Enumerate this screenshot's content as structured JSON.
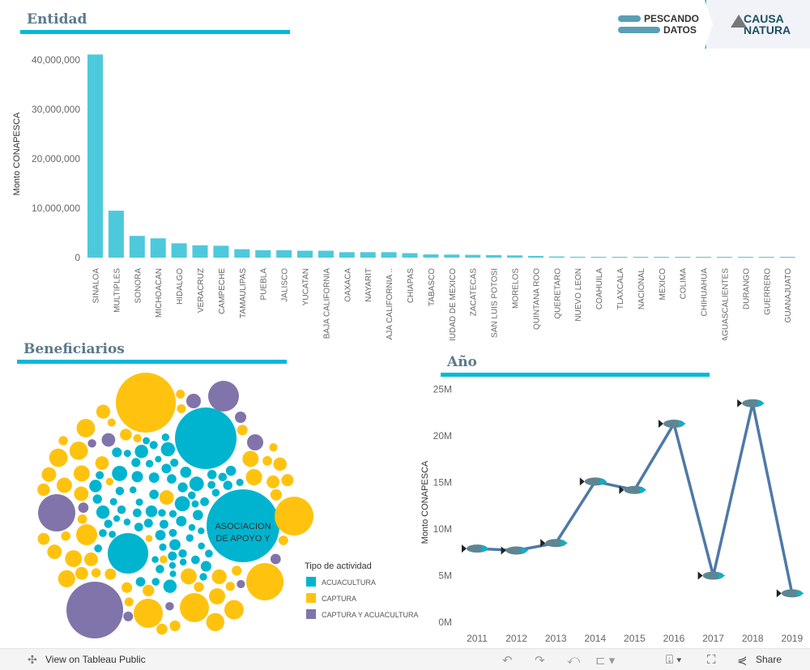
{
  "sections": {
    "entidad": "Entidad",
    "beneficiarios": "Beneficiarios",
    "anio": "Año"
  },
  "logos": {
    "pescando": [
      "PESCANDO",
      "DATOS"
    ],
    "causa": [
      "CAUSA",
      "NATURA"
    ]
  },
  "colors": {
    "bar": "#4dc9dc",
    "line": "#4e79a7",
    "acuacultura": "#00b4cf",
    "captura": "#ffc30f",
    "mixta": "#8174aa",
    "accent": "#00b9d9"
  },
  "chart_data": [
    {
      "type": "bar",
      "ylabel": "Monto CONAPESCA",
      "ylim": [
        0,
        42000000
      ],
      "yticks": [
        "0",
        "10,000,000",
        "20,000,000",
        "30,000,000",
        "40,000,000"
      ],
      "categories": [
        "SINALOA",
        "MULTIPLES",
        "SONORA",
        "MICHOACAN",
        "HIDALGO",
        "VERACRUZ",
        "CAMPECHE",
        "TAMAULIPAS",
        "PUEBLA",
        "JALISCO",
        "YUCATAN",
        "BAJA CALIFORNIA",
        "OAXACA",
        "NAYARIT",
        "BAJA CALIFORNIA ..",
        "CHIAPAS",
        "TABASCO",
        "CIUDAD DE MEXICO",
        "ZACATECAS",
        "SAN LUIS POTOSI",
        "MORELOS",
        "QUINTANA ROO",
        "QUERETARO",
        "NUEVO LEON",
        "COAHUILA",
        "TLAXCALA",
        "NACIONAL",
        "MEXICO",
        "COLIMA",
        "CHIHUAHUA",
        "AGUASCALIENTES",
        "DURANGO",
        "GUERRERO",
        "GUANAJUATO"
      ],
      "values": [
        41100000,
        9500000,
        4400000,
        3900000,
        2900000,
        2500000,
        2400000,
        1700000,
        1500000,
        1500000,
        1400000,
        1400000,
        1100000,
        1100000,
        1100000,
        900000,
        650000,
        620000,
        560000,
        520000,
        450000,
        350000,
        230000,
        180000,
        160000,
        150000,
        140000,
        90000,
        70000,
        60000,
        50000,
        40000,
        20000,
        5000
      ]
    },
    {
      "type": "bubble",
      "legend_title": "Tipo de actividad",
      "legend": [
        "ACUACULTURA",
        "CAPTURA",
        "CAPTURA Y ACUACULTURA"
      ],
      "label": [
        "ASOCIACION",
        "DE APOYO Y"
      ]
    },
    {
      "type": "line",
      "ylabel": "Monto CONAPESCA",
      "ylim": [
        0,
        25
      ],
      "yticks": [
        "0M",
        "5M",
        "10M",
        "15M",
        "20M",
        "25M"
      ],
      "x": [
        "2011",
        "2012",
        "2013",
        "2014",
        "2015",
        "2016",
        "2017",
        "2018",
        "2019"
      ],
      "values_millions": [
        7.9,
        7.7,
        8.5,
        15.1,
        14.2,
        21.3,
        5.0,
        23.5,
        3.1
      ]
    }
  ],
  "footer": {
    "view": "View on Tableau Public",
    "share": "Share"
  }
}
